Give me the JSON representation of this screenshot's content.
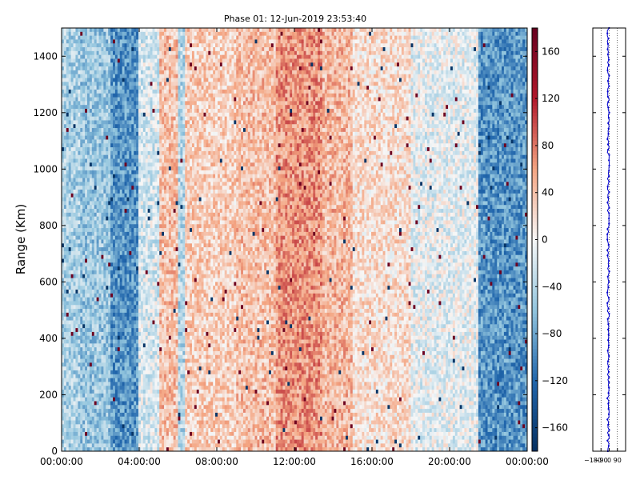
{
  "chart_data": [
    {
      "type": "heatmap",
      "title": "Phase 01: 12-Jun-2019 23:53:40",
      "xlabel": "",
      "ylabel": "Range (Km)",
      "x_tick_labels": [
        "00:00:00",
        "04:00:00",
        "08:00:00",
        "12:00:00",
        "16:00:00",
        "20:00:00",
        "00:00:00"
      ],
      "x_range_hours": [
        0,
        24
      ],
      "y_ticks": [
        0,
        200,
        400,
        600,
        800,
        1000,
        1200,
        1400
      ],
      "ylim": [
        0,
        1500
      ],
      "colorbar": {
        "ticks": [
          -160,
          -120,
          -80,
          -40,
          0,
          40,
          80,
          120,
          160
        ],
        "range": [
          -180,
          180
        ],
        "low_color": "#053061",
        "mid_color": "#f7f7f7",
        "high_color": "#67001f"
      },
      "time_profile": [
        {
          "start": 0.0,
          "end": 1.0,
          "mean": -45
        },
        {
          "start": 1.0,
          "end": 2.5,
          "mean": -55
        },
        {
          "start": 2.5,
          "end": 4.0,
          "mean": -90
        },
        {
          "start": 4.0,
          "end": 5.0,
          "mean": -20
        },
        {
          "start": 5.0,
          "end": 6.0,
          "mean": 40
        },
        {
          "start": 6.0,
          "end": 6.4,
          "mean": -40
        },
        {
          "start": 6.4,
          "end": 9.0,
          "mean": 30
        },
        {
          "start": 9.0,
          "end": 11.0,
          "mean": 40
        },
        {
          "start": 11.0,
          "end": 13.5,
          "mean": 65
        },
        {
          "start": 13.5,
          "end": 15.0,
          "mean": 45
        },
        {
          "start": 15.0,
          "end": 18.0,
          "mean": 20
        },
        {
          "start": 18.0,
          "end": 21.5,
          "mean": -10
        },
        {
          "start": 21.5,
          "end": 24.0,
          "mean": -90
        }
      ]
    },
    {
      "type": "line",
      "title": "",
      "x_tick_labels": [
        "−180",
        "−90",
        "0",
        "90"
      ],
      "xlim": [
        -180,
        180
      ],
      "ylim": [
        0,
        1500
      ],
      "line_color": "#0000cc",
      "mean_value": -10
    }
  ]
}
